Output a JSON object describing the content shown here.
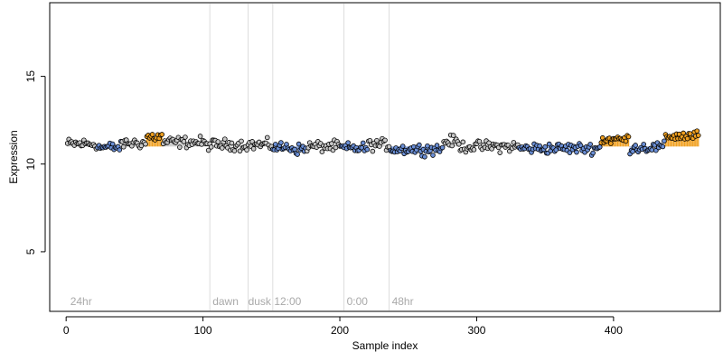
{
  "chart_data": {
    "type": "scatter",
    "title": "",
    "xlabel": "Sample index",
    "ylabel": "Expression",
    "xlim": [
      -12,
      478
    ],
    "ylim": [
      1.6,
      19.2
    ],
    "x_ticks": [
      0,
      100,
      200,
      300,
      400
    ],
    "x_tick_labels": [
      "0",
      "100",
      "200",
      "300",
      "400"
    ],
    "y_ticks": [
      5,
      10,
      15
    ],
    "y_tick_labels": [
      "5",
      "10",
      "15"
    ],
    "grid": false,
    "legend": "none",
    "region_boundaries": [
      105,
      133,
      151,
      203,
      236
    ],
    "region_labels": [
      {
        "x": 3,
        "text": "24hr"
      },
      {
        "x": 107,
        "text": "dawn"
      },
      {
        "x": 133,
        "text": "dusk"
      },
      {
        "x": 152,
        "text": "12:00"
      },
      {
        "x": 205,
        "text": "0:00"
      },
      {
        "x": 238,
        "text": "48hr"
      }
    ],
    "baseline": 11.0,
    "segments": [
      {
        "start": 1,
        "end": 22,
        "level": 11.15,
        "status": "neutral"
      },
      {
        "start": 23,
        "end": 40,
        "level": 10.95,
        "status": "low"
      },
      {
        "start": 41,
        "end": 58,
        "level": 11.2,
        "status": "neutral"
      },
      {
        "start": 59,
        "end": 70,
        "level": 11.55,
        "status": "high"
      },
      {
        "start": 71,
        "end": 100,
        "level": 11.25,
        "status": "neutral"
      },
      {
        "start": 101,
        "end": 150,
        "level": 11.1,
        "status": "neutral"
      },
      {
        "start": 151,
        "end": 165,
        "level": 10.95,
        "status": "low"
      },
      {
        "start": 166,
        "end": 175,
        "level": 10.85,
        "status": "low"
      },
      {
        "start": 176,
        "end": 200,
        "level": 11.0,
        "status": "neutral"
      },
      {
        "start": 201,
        "end": 220,
        "level": 10.9,
        "status": "low"
      },
      {
        "start": 221,
        "end": 236,
        "level": 11.1,
        "status": "neutral"
      },
      {
        "start": 237,
        "end": 275,
        "level": 10.85,
        "status": "low"
      },
      {
        "start": 276,
        "end": 286,
        "level": 11.3,
        "status": "neutral"
      },
      {
        "start": 287,
        "end": 330,
        "level": 11.0,
        "status": "neutral"
      },
      {
        "start": 331,
        "end": 390,
        "level": 10.9,
        "status": "low"
      },
      {
        "start": 391,
        "end": 411,
        "level": 11.4,
        "status": "high"
      },
      {
        "start": 412,
        "end": 437,
        "level": 10.95,
        "status": "low"
      },
      {
        "start": 438,
        "end": 462,
        "level": 11.6,
        "status": "high"
      }
    ],
    "colors": {
      "high": "#f0a020",
      "low": "#6b8fd6",
      "neutral": "#c8c8c8",
      "point_stroke": "#000000",
      "grid_line": "#dddddd",
      "region_text": "#a9a9a9"
    },
    "noise_amplitude": 0.22,
    "n_points": 462
  }
}
